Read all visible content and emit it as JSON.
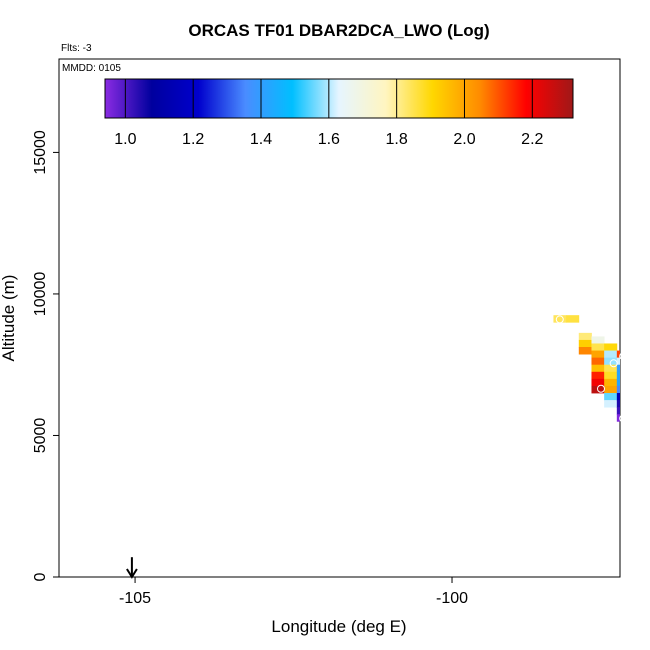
{
  "chart_data": {
    "type": "heatmap",
    "title": "ORCAS TF01 DBAR2DCA_LWO (Log)",
    "flights_label": "Flts: -3",
    "date_label": "MMDD: 0105",
    "xlabel": "Longitude (deg E)",
    "ylabel": "Altitude (m)",
    "xlim": [
      -106.2,
      -97.35
    ],
    "ylim": [
      0,
      18300
    ],
    "x_ticks": [
      -105,
      -100
    ],
    "y_ticks": [
      0,
      5000,
      10000,
      15000
    ],
    "colorbar": {
      "range": [
        0.94,
        2.32
      ],
      "ticks": [
        1.0,
        1.2,
        1.4,
        1.6,
        1.8,
        2.0,
        2.2
      ],
      "tick_labels": [
        "1.0",
        "1.2",
        "1.4",
        "1.6",
        "1.8",
        "2.0",
        "2.2"
      ],
      "stops": [
        "#8a2be2",
        "#00009e",
        "#0000cd",
        "#4a8cff",
        "#00bfff",
        "#e6f5ff",
        "#fff5c0",
        "#ffd700",
        "#ff8c00",
        "#ff0000",
        "#a01818"
      ]
    },
    "cell_width_deg": 0.2,
    "cell_height_m": 250,
    "cells": [
      {
        "lon": -98.3,
        "alt": 9125,
        "value": 1.84
      },
      {
        "lon": -98.1,
        "alt": 9125,
        "value": 1.86
      },
      {
        "lon": -97.9,
        "alt": 8500,
        "value": 1.82
      },
      {
        "lon": -97.9,
        "alt": 8250,
        "value": 1.92
      },
      {
        "lon": -97.9,
        "alt": 8000,
        "value": 2.05
      },
      {
        "lon": -97.7,
        "alt": 8375,
        "value": 1.68
      },
      {
        "lon": -97.7,
        "alt": 8125,
        "value": 1.85
      },
      {
        "lon": -97.7,
        "alt": 7875,
        "value": 2.0
      },
      {
        "lon": -97.7,
        "alt": 7625,
        "value": 2.08
      },
      {
        "lon": -97.7,
        "alt": 7375,
        "value": 1.95
      },
      {
        "lon": -97.7,
        "alt": 7125,
        "value": 2.15
      },
      {
        "lon": -97.7,
        "alt": 6875,
        "value": 2.2
      },
      {
        "lon": -97.7,
        "alt": 6625,
        "value": 2.28
      },
      {
        "lon": -97.5,
        "alt": 8125,
        "value": 1.9
      },
      {
        "lon": -97.5,
        "alt": 7875,
        "value": 1.6
      },
      {
        "lon": -97.5,
        "alt": 7625,
        "value": 1.58
      },
      {
        "lon": -97.5,
        "alt": 7375,
        "value": 1.85
      },
      {
        "lon": -97.5,
        "alt": 7125,
        "value": 1.88
      },
      {
        "lon": -97.5,
        "alt": 6875,
        "value": 1.97
      },
      {
        "lon": -97.5,
        "alt": 6625,
        "value": 2.0
      },
      {
        "lon": -97.5,
        "alt": 6375,
        "value": 1.55
      },
      {
        "lon": -97.5,
        "alt": 6125,
        "value": 1.62
      },
      {
        "lon": -97.3,
        "alt": 7875,
        "value": 2.12
      },
      {
        "lon": -97.3,
        "alt": 7625,
        "value": 1.62
      },
      {
        "lon": -97.3,
        "alt": 7375,
        "value": 1.4
      },
      {
        "lon": -97.3,
        "alt": 7125,
        "value": 1.42
      },
      {
        "lon": -97.3,
        "alt": 6875,
        "value": 1.42
      },
      {
        "lon": -97.3,
        "alt": 6625,
        "value": 1.35
      },
      {
        "lon": -97.3,
        "alt": 6375,
        "value": 1.15
      },
      {
        "lon": -97.3,
        "alt": 6125,
        "value": 1.05
      },
      {
        "lon": -97.3,
        "alt": 5875,
        "value": 1.02
      },
      {
        "lon": -97.3,
        "alt": 5625,
        "value": 0.95
      }
    ],
    "circles": [
      {
        "lon": -97.65,
        "alt": 6650
      },
      {
        "lon": -97.45,
        "alt": 7550
      },
      {
        "lon": -97.3,
        "alt": 7800
      },
      {
        "lon": -97.3,
        "alt": 5600
      },
      {
        "lon": -98.3,
        "alt": 9100
      }
    ],
    "arrow": {
      "lon": -105.05,
      "alt_top": 700,
      "alt_bottom": 0
    }
  }
}
